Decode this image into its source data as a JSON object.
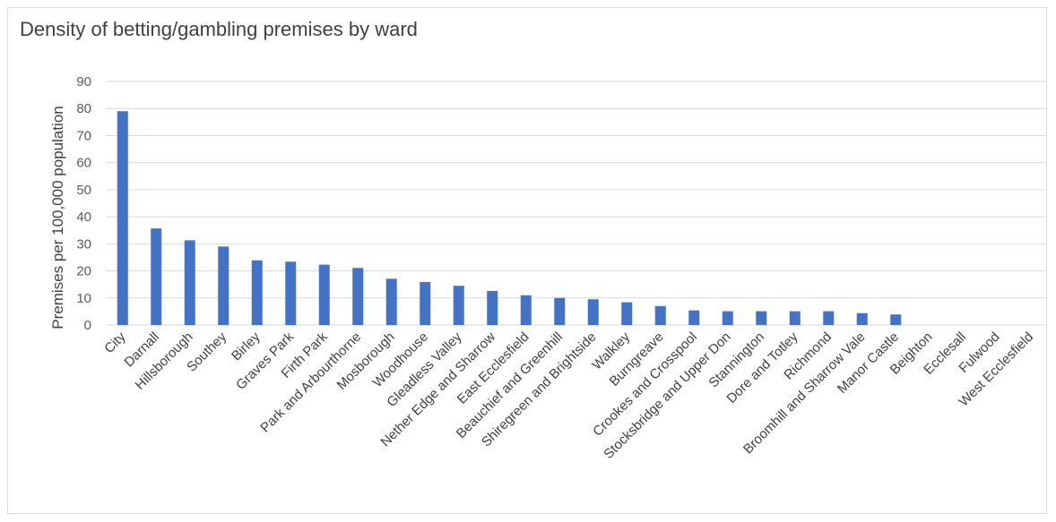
{
  "chart_data": {
    "type": "bar",
    "title": "Density of betting/gambling premises by ward",
    "xlabel": "",
    "ylabel": "Premises per 100,000 population",
    "ylim": [
      0,
      90
    ],
    "yticks": [
      0,
      10,
      20,
      30,
      40,
      50,
      60,
      70,
      80,
      90
    ],
    "grid": true,
    "legend": "none",
    "bar_color": "#4472c4",
    "categories": [
      "City",
      "Darnall",
      "Hillsborough",
      "Southey",
      "Birley",
      "Graves Park",
      "Firth Park",
      "Park and Arbourthorne",
      "Mosborough",
      "Woodhouse",
      "Gleadless Valley",
      "Nether Edge and Sharrow",
      "East Ecclesfield",
      "Beauchief and Greenhill",
      "Shiregreen and Brightside",
      "Walkley",
      "Burngreave",
      "Crookes and Crosspool",
      "Stocksbridge and Upper Don",
      "Stannington",
      "Dore and Totley",
      "Richmond",
      "Broomhill and Sharrow Vale",
      "Manor Castle",
      "Beighton",
      "Ecclesall",
      "Fulwood",
      "West Ecclesfield"
    ],
    "values": [
      79,
      35.7,
      31.3,
      29,
      23.9,
      23.4,
      22.3,
      21.1,
      17.1,
      15.9,
      14.5,
      12.6,
      11,
      10,
      9.5,
      8.4,
      7,
      5.4,
      5.1,
      5.1,
      5.1,
      5.1,
      4.4,
      3.9,
      0,
      0,
      0,
      0
    ]
  }
}
